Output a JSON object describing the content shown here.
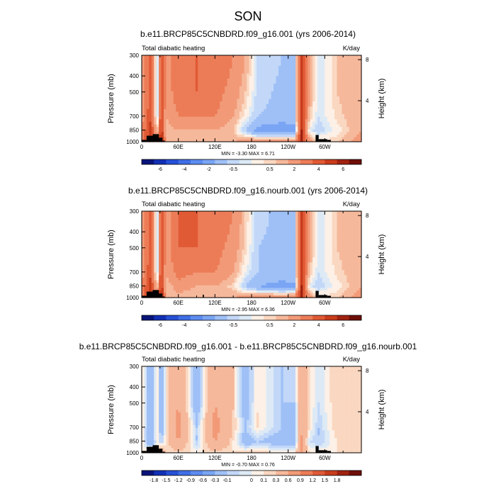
{
  "figure": {
    "title": "SON"
  },
  "chart_data": [
    {
      "type": "heatmap",
      "title": "b.e11.BRCP85C5CNBDRD.f09_g16.001 (yrs 2006-2014)",
      "left_label": "Total diabatic heating",
      "units": "K/day",
      "xlabel": "",
      "ylabel": "Pressure (mb)",
      "ylabel_right": "Height (km)",
      "xticks": [
        "0",
        "60E",
        "120E",
        "180",
        "120W",
        "60W"
      ],
      "xticks_value": [
        0,
        60,
        120,
        180,
        240,
        300
      ],
      "xlim": [
        0,
        360
      ],
      "yticks": [
        "300",
        "400",
        "500",
        "700",
        "850",
        "1000"
      ],
      "yticks_value": [
        300,
        400,
        500,
        700,
        850,
        1000
      ],
      "ylim": [
        1000,
        300
      ],
      "yticks_right": [
        "8",
        "4"
      ],
      "yticks_right_value": [
        8,
        4
      ],
      "minmax": "MIN = -3.30  MAX =  6.71",
      "colorbar_labels": [
        "-6",
        "-4",
        "-2",
        "-0.5",
        "0.5",
        "2",
        "4",
        "6"
      ],
      "colorbar_colors": [
        "#08147a",
        "#1230b4",
        "#2750d6",
        "#3f6fe6",
        "#5d8cf0",
        "#7aa5f4",
        "#9fc0f7",
        "#c3d8f8",
        "#ddeaf6",
        "#fdf0e6",
        "#fad7c0",
        "#f6b89b",
        "#f29a78",
        "#ec7c57",
        "#e05a35",
        "#c83c1c",
        "#a02210",
        "#6e0e08"
      ],
      "field": {
        "x": [
          0,
          15,
          25,
          32,
          40,
          60,
          90,
          120,
          150,
          170,
          190,
          230,
          250,
          262,
          275,
          290,
          320,
          360
        ],
        "levels": [
          300,
          500,
          700,
          850,
          1000
        ],
        "values": [
          [
            1.0,
            3.5,
            -1.0,
            4.5,
            1.5,
            2.5,
            3.0,
            3.0,
            2.0,
            1.0,
            -0.5,
            -1.0,
            -1.2,
            4.0,
            1.0,
            -0.5,
            0.5,
            1.0
          ],
          [
            1.0,
            3.5,
            -1.0,
            4.5,
            1.5,
            2.5,
            3.0,
            2.5,
            1.5,
            0.5,
            -0.7,
            -1.2,
            -1.2,
            4.0,
            1.0,
            -0.5,
            0.5,
            1.0
          ],
          [
            1.5,
            4.0,
            -1.0,
            4.5,
            1.0,
            2.0,
            2.0,
            2.0,
            1.0,
            0.0,
            -1.0,
            -1.3,
            -1.2,
            4.5,
            0.5,
            -0.5,
            0.3,
            1.0
          ],
          [
            2.0,
            4.5,
            0.0,
            5.0,
            0.5,
            1.0,
            1.0,
            1.0,
            0.5,
            -1.0,
            -2.5,
            -3.0,
            -2.5,
            5.0,
            -0.3,
            -0.8,
            0.0,
            1.0
          ],
          [
            3.0,
            5.0,
            2.0,
            6.5,
            1.0,
            0.5,
            0.5,
            0.5,
            1.0,
            1.5,
            2.0,
            2.0,
            2.0,
            5.0,
            1.5,
            0.5,
            0.5,
            1.5
          ]
        ]
      },
      "topography": [
        {
          "lon0": 0,
          "lon1": 8,
          "p": 975
        },
        {
          "lon0": 8,
          "lon1": 18,
          "p": 920
        },
        {
          "lon0": 18,
          "lon1": 28,
          "p": 900
        },
        {
          "lon0": 28,
          "lon1": 34,
          "p": 945
        },
        {
          "lon0": 34,
          "lon1": 38,
          "p": 985
        },
        {
          "lon0": 100,
          "lon1": 102,
          "p": 960
        },
        {
          "lon0": 285,
          "lon1": 290,
          "p": 910
        },
        {
          "lon0": 290,
          "lon1": 304,
          "p": 965
        },
        {
          "lon0": 304,
          "lon1": 310,
          "p": 975
        }
      ]
    },
    {
      "type": "heatmap",
      "title": "b.e11.BRCP85C5CNBDRD.f09_g16.nourb.001 (yrs 2006-2014)",
      "left_label": "Total diabatic heating",
      "units": "K/day",
      "xlabel": "",
      "ylabel": "Pressure (mb)",
      "ylabel_right": "Height (km)",
      "xticks": [
        "0",
        "60E",
        "120E",
        "180",
        "120W",
        "60W"
      ],
      "xticks_value": [
        0,
        60,
        120,
        180,
        240,
        300
      ],
      "xlim": [
        0,
        360
      ],
      "yticks": [
        "300",
        "400",
        "500",
        "700",
        "850",
        "1000"
      ],
      "yticks_value": [
        300,
        400,
        500,
        700,
        850,
        1000
      ],
      "ylim": [
        1000,
        300
      ],
      "yticks_right": [
        "8",
        "4"
      ],
      "yticks_right_value": [
        8,
        4
      ],
      "minmax": "MIN = -2.95  MAX =  6.36",
      "colorbar_labels": [
        "-6",
        "-4",
        "-2",
        "-0.5",
        "0.5",
        "2",
        "4",
        "6"
      ],
      "colorbar_colors": [
        "#08147a",
        "#1230b4",
        "#2750d6",
        "#3f6fe6",
        "#5d8cf0",
        "#7aa5f4",
        "#9fc0f7",
        "#c3d8f8",
        "#ddeaf6",
        "#fdf0e6",
        "#fad7c0",
        "#f6b89b",
        "#f29a78",
        "#ec7c57",
        "#e05a35",
        "#c83c1c",
        "#a02210",
        "#6e0e08"
      ],
      "field": {
        "x": [
          0,
          15,
          25,
          32,
          40,
          60,
          90,
          120,
          150,
          170,
          190,
          230,
          250,
          262,
          275,
          290,
          320,
          360
        ],
        "levels": [
          300,
          500,
          700,
          850,
          1000
        ],
        "values": [
          [
            1.0,
            3.5,
            -1.0,
            4.5,
            1.5,
            3.0,
            3.0,
            3.0,
            2.0,
            0.5,
            -0.8,
            -1.2,
            -1.2,
            4.0,
            1.0,
            -0.5,
            0.5,
            1.0
          ],
          [
            1.0,
            3.5,
            -1.0,
            4.5,
            1.5,
            3.0,
            3.0,
            2.5,
            1.5,
            0.3,
            -1.0,
            -1.2,
            -1.2,
            4.0,
            1.0,
            -0.5,
            0.5,
            1.0
          ],
          [
            1.5,
            4.0,
            -1.0,
            4.5,
            1.0,
            2.5,
            2.0,
            2.0,
            1.0,
            -0.2,
            -1.0,
            -1.3,
            -1.2,
            4.5,
            0.5,
            -0.5,
            0.3,
            1.0
          ],
          [
            2.0,
            4.5,
            0.0,
            5.0,
            0.5,
            1.5,
            1.0,
            1.0,
            0.3,
            -1.0,
            -2.0,
            -2.5,
            -2.2,
            5.0,
            -0.3,
            -0.8,
            0.0,
            1.0
          ],
          [
            3.0,
            5.0,
            2.0,
            6.0,
            1.0,
            0.5,
            0.5,
            0.5,
            1.0,
            1.5,
            2.0,
            2.0,
            2.0,
            5.0,
            1.5,
            0.5,
            0.5,
            1.5
          ]
        ]
      },
      "topography": [
        {
          "lon0": 0,
          "lon1": 8,
          "p": 975
        },
        {
          "lon0": 8,
          "lon1": 18,
          "p": 920
        },
        {
          "lon0": 18,
          "lon1": 28,
          "p": 900
        },
        {
          "lon0": 28,
          "lon1": 34,
          "p": 945
        },
        {
          "lon0": 34,
          "lon1": 38,
          "p": 985
        },
        {
          "lon0": 100,
          "lon1": 102,
          "p": 960
        },
        {
          "lon0": 285,
          "lon1": 290,
          "p": 910
        },
        {
          "lon0": 290,
          "lon1": 304,
          "p": 965
        },
        {
          "lon0": 304,
          "lon1": 310,
          "p": 975
        }
      ]
    },
    {
      "type": "heatmap",
      "title": "b.e11.BRCP85C5CNBDRD.f09_g16.001 - b.e11.BRCP85C5CNBDRD.f09_g16.nourb.001",
      "left_label": "Total diabatic heating",
      "units": "K/day",
      "xlabel": "",
      "ylabel": "Pressure (mb)",
      "ylabel_right": "Height (km)",
      "xticks": [
        "0",
        "60E",
        "120E",
        "180",
        "120W",
        "60W"
      ],
      "xticks_value": [
        0,
        60,
        120,
        180,
        240,
        300
      ],
      "xlim": [
        0,
        360
      ],
      "yticks": [
        "300",
        "400",
        "500",
        "700",
        "850",
        "1000"
      ],
      "yticks_value": [
        300,
        400,
        500,
        700,
        850,
        1000
      ],
      "ylim": [
        1000,
        300
      ],
      "yticks_right": [
        "8",
        "4"
      ],
      "yticks_right_value": [
        8,
        4
      ],
      "minmax": "MIN = -0.70  MAX =  0.76",
      "colorbar_labels": [
        "-1.8",
        "-1.5",
        "-1.2",
        "-0.9",
        "-0.6",
        "-0.3",
        "-0.1",
        "0",
        "0.1",
        "0.3",
        "0.6",
        "0.9",
        "1.2",
        "1.5",
        "1.8"
      ],
      "colorbar_colors": [
        "#08147a",
        "#1230b4",
        "#2750d6",
        "#3f6fe6",
        "#5d8cf0",
        "#7aa5f4",
        "#9fc0f7",
        "#c3d8f8",
        "#ddeaf6",
        "#fdf0e6",
        "#fad7c0",
        "#f6b89b",
        "#f29a78",
        "#ec7c57",
        "#e05a35",
        "#c83c1c",
        "#a02210",
        "#6e0e08"
      ],
      "field": {
        "x": [
          0,
          15,
          25,
          32,
          40,
          60,
          90,
          120,
          150,
          170,
          190,
          230,
          250,
          262,
          275,
          290,
          320,
          360
        ],
        "levels": [
          300,
          500,
          700,
          850,
          1000
        ],
        "values": [
          [
            0.05,
            -0.2,
            0.05,
            -0.2,
            0.05,
            0.3,
            -0.2,
            0.3,
            0.1,
            -0.2,
            0.05,
            -0.1,
            -0.1,
            0.2,
            0.05,
            -0.05,
            0.1,
            0.05
          ],
          [
            0.05,
            -0.2,
            0.05,
            -0.2,
            0.05,
            0.3,
            -0.2,
            0.3,
            0.1,
            -0.2,
            0.05,
            -0.1,
            -0.1,
            0.2,
            0.05,
            -0.05,
            0.1,
            0.05
          ],
          [
            0.05,
            -0.2,
            0.05,
            -0.2,
            0.05,
            0.4,
            -0.1,
            0.4,
            0.1,
            -0.1,
            0.05,
            -0.1,
            -0.15,
            0.3,
            0.05,
            -0.1,
            0.1,
            0.05
          ],
          [
            0.05,
            -0.3,
            0.05,
            -0.1,
            0.05,
            0.3,
            -0.1,
            0.3,
            0.05,
            -0.2,
            -0.1,
            -0.2,
            -0.2,
            0.3,
            -0.05,
            -0.1,
            0.05,
            0.05
          ],
          [
            0.05,
            0.2,
            0.05,
            0.3,
            0.05,
            0.05,
            0.05,
            0.05,
            0.05,
            0.1,
            0.1,
            0.05,
            0.05,
            0.3,
            0.05,
            0.05,
            0.05,
            0.05
          ]
        ]
      },
      "topography": [
        {
          "lon0": 0,
          "lon1": 8,
          "p": 975
        },
        {
          "lon0": 8,
          "lon1": 18,
          "p": 920
        },
        {
          "lon0": 18,
          "lon1": 28,
          "p": 900
        },
        {
          "lon0": 28,
          "lon1": 34,
          "p": 945
        },
        {
          "lon0": 34,
          "lon1": 38,
          "p": 985
        },
        {
          "lon0": 100,
          "lon1": 102,
          "p": 960
        },
        {
          "lon0": 285,
          "lon1": 290,
          "p": 910
        },
        {
          "lon0": 290,
          "lon1": 304,
          "p": 965
        },
        {
          "lon0": 304,
          "lon1": 310,
          "p": 975
        }
      ]
    }
  ]
}
